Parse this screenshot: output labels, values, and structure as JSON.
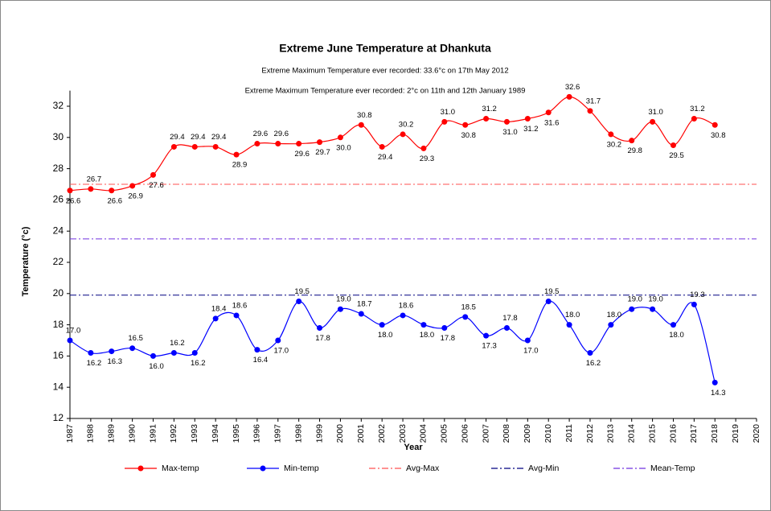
{
  "chart_data": {
    "type": "line",
    "title": "Extreme June Temperature at Dhankuta",
    "subtitles": [
      "Extreme Maximum Temperature ever recorded: 33.6°c on 17th May 2012",
      "Extreme Maximum Temperature ever recorded: 2°c on 11th and 12th January 1989"
    ],
    "xlabel": "Year",
    "ylabel": "Temperature (°c)",
    "x": [
      1987,
      1988,
      1989,
      1990,
      1991,
      1992,
      1993,
      1994,
      1995,
      1996,
      1997,
      1998,
      1999,
      2000,
      2001,
      2002,
      2003,
      2004,
      2005,
      2006,
      2007,
      2008,
      2009,
      2010,
      2011,
      2012,
      2013,
      2014,
      2015,
      2016,
      2017,
      2018
    ],
    "xlim": [
      1987,
      2020
    ],
    "xticks": [
      1987,
      1988,
      1989,
      1990,
      1991,
      1992,
      1993,
      1994,
      1995,
      1996,
      1997,
      1998,
      1999,
      2000,
      2001,
      2002,
      2003,
      2004,
      2005,
      2006,
      2007,
      2008,
      2009,
      2010,
      2011,
      2012,
      2013,
      2014,
      2015,
      2016,
      2017,
      2018,
      2019,
      2020
    ],
    "ylim": [
      12,
      33
    ],
    "yticks": [
      12,
      14,
      16,
      18,
      20,
      22,
      24,
      26,
      28,
      30,
      32
    ],
    "series": [
      {
        "name": "Max-temp",
        "color": "#ff0000",
        "values": [
          26.6,
          26.7,
          26.6,
          26.9,
          27.6,
          29.4,
          29.4,
          29.4,
          28.9,
          29.6,
          29.6,
          29.6,
          29.7,
          30.0,
          30.8,
          29.4,
          30.2,
          29.3,
          31.0,
          30.8,
          31.2,
          31.0,
          31.2,
          31.6,
          32.6,
          31.7,
          30.2,
          29.8,
          31.0,
          29.5,
          31.2,
          30.8
        ],
        "value_labels": [
          "26.6",
          "26.7",
          "26.6",
          "26.9",
          "27.6",
          "29.4",
          "29.4",
          "29.4",
          "28.9",
          "29.6",
          "29.6",
          "29.6",
          "29.7",
          "30.0",
          "30.8",
          "29.4",
          "30.2",
          "29.3",
          "31.0",
          "30.8",
          "31.2",
          "31.0",
          "31.2",
          "31.6",
          "32.6",
          "31.7",
          "30.2",
          "29.8",
          "31.0",
          "29.5",
          "31.2",
          "30.8"
        ]
      },
      {
        "name": "Min-temp",
        "color": "#0000ff",
        "values": [
          17.0,
          16.2,
          16.3,
          16.5,
          16.0,
          16.2,
          16.2,
          18.4,
          18.6,
          16.4,
          17.0,
          19.5,
          17.8,
          19.0,
          18.7,
          18.0,
          18.6,
          18.0,
          17.8,
          18.5,
          17.3,
          17.8,
          17.0,
          19.5,
          18.0,
          16.2,
          18.0,
          19.0,
          19.0,
          18.0,
          19.3,
          14.3
        ],
        "value_labels": [
          "17.0",
          "16.2",
          "16.3",
          "16.5",
          "16.0",
          "16.2",
          "16.2",
          "18.4",
          "18.6",
          "16.4",
          "17.0",
          "19.5",
          "17.8",
          "19.0",
          "18.7",
          "18.0",
          "18.6",
          "18.0",
          "17.8",
          "18.5",
          "17.3",
          "17.8",
          "17.0",
          "19.5",
          "18.0",
          "16.2",
          "18.0",
          "19.0",
          "19.0",
          "18.0",
          "19.3",
          "14.3"
        ]
      }
    ],
    "reference_lines": [
      {
        "name": "Avg-Max",
        "color": "#ff5050",
        "value": 27.0
      },
      {
        "name": "Avg-Min",
        "color": "#000080",
        "value": 19.9
      },
      {
        "name": "Mean-Temp",
        "color": "#7030e0",
        "value": 23.5
      }
    ],
    "legend": "bottom"
  }
}
